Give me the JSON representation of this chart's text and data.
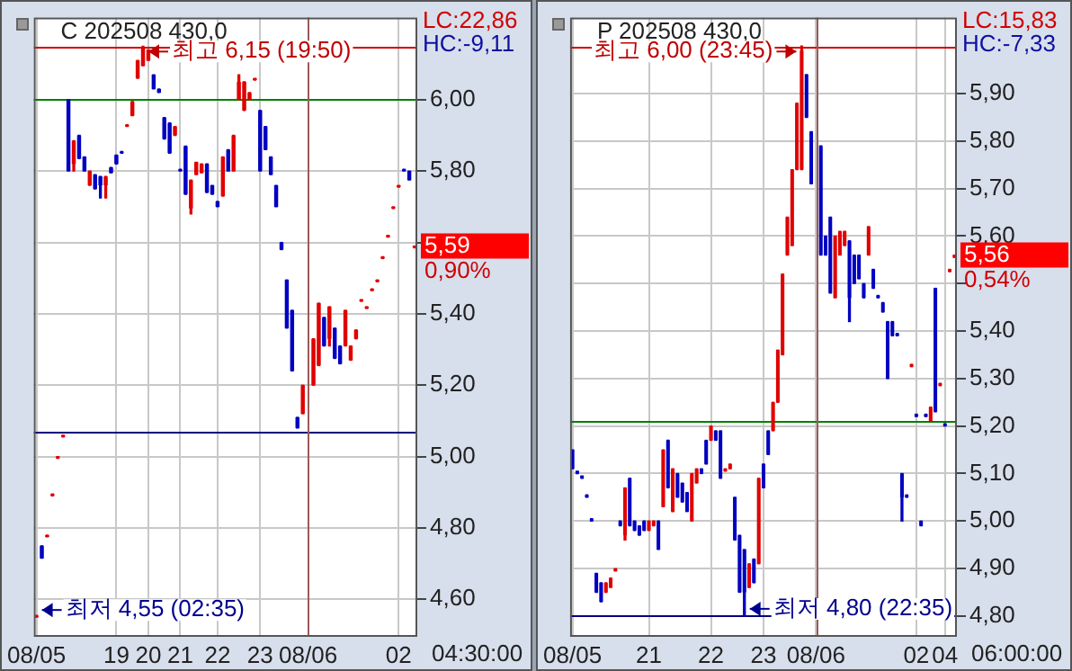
{
  "chart_data": [
    {
      "type": "candlestick",
      "title": "C 202508 430,0",
      "annotations": [
        "LC:22,86",
        "HC:-9,11",
        "최고 6,15 (19:50)",
        "최저 4,55 (02:35)",
        "5,59",
        "0,90%",
        "04:30:00"
      ],
      "categories": [
        "08/05",
        null,
        null,
        null,
        null,
        null,
        null,
        null,
        null,
        null,
        null,
        null,
        null,
        null,
        null,
        "19",
        null,
        null,
        null,
        null,
        null,
        "20",
        null,
        null,
        null,
        null,
        null,
        "21",
        null,
        null,
        null,
        null,
        null,
        null,
        "22",
        null,
        null,
        null,
        null,
        null,
        null,
        null,
        "23",
        null,
        null,
        null,
        null,
        null,
        null,
        null,
        null,
        "08/06",
        null,
        null,
        null,
        null,
        null,
        null,
        null,
        null,
        null,
        null,
        null,
        null,
        null,
        null,
        null,
        null,
        "02",
        null,
        null,
        null
      ],
      "ohlc": [
        [
          4.55,
          4.555,
          4.55,
          4.555
        ],
        [
          4.75,
          4.75,
          4.715,
          4.715
        ],
        [
          4.775,
          4.78,
          4.775,
          4.78
        ],
        [
          4.89,
          4.895,
          4.89,
          4.895
        ],
        [
          4.995,
          5.0,
          4.995,
          5.0
        ],
        [
          5.055,
          5.06,
          5.055,
          5.06
        ],
        [
          6.0,
          6.0,
          5.8,
          5.8
        ],
        [
          5.82,
          5.885,
          5.8,
          5.885
        ],
        [
          5.9,
          5.9,
          5.835,
          5.835
        ],
        [
          5.84,
          5.84,
          5.8,
          5.8
        ],
        [
          5.76,
          5.8,
          5.76,
          5.8
        ],
        [
          5.79,
          5.79,
          5.75,
          5.75
        ],
        [
          5.785,
          5.785,
          5.725,
          5.76
        ],
        [
          5.76,
          5.785,
          5.725,
          5.785
        ],
        [
          5.81,
          5.81,
          5.795,
          5.795
        ],
        [
          5.845,
          5.845,
          5.82,
          5.82
        ],
        [
          5.855,
          5.855,
          5.85,
          5.85
        ],
        [
          5.925,
          5.93,
          5.925,
          5.93
        ],
        [
          5.955,
          5.995,
          5.955,
          5.995
        ],
        [
          6.06,
          6.11,
          6.06,
          6.11
        ],
        [
          6.095,
          6.15,
          6.095,
          6.145
        ],
        [
          6.11,
          6.14,
          6.11,
          6.14
        ],
        [
          6.07,
          6.07,
          6.03,
          6.03
        ],
        [
          6.03,
          6.03,
          6.02,
          6.02
        ],
        [
          5.95,
          5.95,
          5.89,
          5.89
        ],
        [
          5.935,
          5.935,
          5.85,
          5.85
        ],
        [
          5.9,
          5.925,
          5.9,
          5.925
        ],
        [
          5.805,
          5.805,
          5.8,
          5.8
        ],
        [
          5.87,
          5.87,
          5.735,
          5.735
        ],
        [
          5.695,
          5.775,
          5.68,
          5.775
        ],
        [
          5.79,
          5.825,
          5.79,
          5.825
        ],
        [
          5.795,
          5.82,
          5.795,
          5.82
        ],
        [
          5.82,
          5.82,
          5.74,
          5.74
        ],
        [
          5.76,
          5.76,
          5.735,
          5.735
        ],
        [
          5.715,
          5.715,
          5.7,
          5.7
        ],
        [
          5.73,
          5.84,
          5.73,
          5.84
        ],
        [
          5.86,
          5.86,
          5.8,
          5.8
        ],
        [
          5.8,
          5.9,
          5.8,
          5.9
        ],
        [
          6.0,
          6.07,
          6.0,
          6.05
        ],
        [
          5.97,
          6.05,
          5.97,
          6.05
        ],
        [
          6.0,
          6.02,
          6.0,
          6.02
        ],
        [
          6.055,
          6.06,
          6.055,
          6.06
        ],
        [
          5.97,
          5.97,
          5.8,
          5.8
        ],
        [
          5.925,
          5.925,
          5.86,
          5.86
        ],
        [
          5.84,
          5.84,
          5.79,
          5.79
        ],
        [
          5.76,
          5.76,
          5.7,
          5.7
        ],
        [
          5.6,
          5.6,
          5.58,
          5.58
        ],
        [
          5.495,
          5.495,
          5.36,
          5.36
        ],
        [
          5.41,
          5.41,
          5.24,
          5.24
        ],
        [
          5.11,
          5.11,
          5.08,
          5.08
        ],
        [
          5.12,
          5.2,
          5.12,
          5.2
        ],
        null,
        [
          5.2,
          5.33,
          5.2,
          5.33
        ],
        [
          5.255,
          5.43,
          5.255,
          5.43
        ],
        [
          5.39,
          5.39,
          5.31,
          5.31
        ],
        [
          5.33,
          5.42,
          5.31,
          5.42
        ],
        [
          5.36,
          5.36,
          5.275,
          5.275
        ],
        [
          5.31,
          5.31,
          5.26,
          5.26
        ],
        [
          5.31,
          5.41,
          5.31,
          5.41
        ],
        [
          5.27,
          5.31,
          5.27,
          5.31
        ],
        [
          5.33,
          5.355,
          5.33,
          5.355
        ],
        [
          5.435,
          5.44,
          5.435,
          5.44
        ],
        [
          5.415,
          5.42,
          5.415,
          5.42
        ],
        [
          5.465,
          5.47,
          5.465,
          5.47
        ],
        [
          5.49,
          5.495,
          5.49,
          5.495
        ],
        [
          5.555,
          5.56,
          5.555,
          5.56
        ],
        [
          5.615,
          5.62,
          5.615,
          5.62
        ],
        [
          5.695,
          5.7,
          5.695,
          5.7
        ],
        [
          5.755,
          5.76,
          5.755,
          5.76
        ],
        [
          5.805,
          5.805,
          5.8,
          5.8
        ],
        [
          5.8,
          5.8,
          5.775,
          5.775
        ],
        [
          5.585,
          5.59,
          5.585,
          5.59
        ]
      ],
      "colors": [
        "#e00000",
        "#0000c0",
        "#e00000",
        "#e00000",
        "#e00000",
        "#e00000",
        "#0000c0",
        "#e00000",
        "#0000c0",
        "#0000c0",
        "#e00000",
        "#0000c0",
        "#0000c0",
        "#e00000",
        "#0000c0",
        "#0000c0",
        "#0000c0",
        "#e00000",
        "#e00000",
        "#e00000",
        "#e00000",
        "#e00000",
        "#0000c0",
        "#0000c0",
        "#0000c0",
        "#0000c0",
        "#e00000",
        "#0000c0",
        "#0000c0",
        "#e00000",
        "#e00000",
        "#e00000",
        "#0000c0",
        "#0000c0",
        "#0000c0",
        "#e00000",
        "#0000c0",
        "#e00000",
        "#e00000",
        "#e00000",
        "#e00000",
        "#e00000",
        "#0000c0",
        "#0000c0",
        "#0000c0",
        "#0000c0",
        "#0000c0",
        "#0000c0",
        "#0000c0",
        "#0000c0",
        "#e00000",
        null,
        "#e00000",
        "#e00000",
        "#0000c0",
        "#e00000",
        "#0000c0",
        "#0000c0",
        "#e00000",
        "#e00000",
        "#e00000",
        "#e00000",
        "#e00000",
        "#e00000",
        "#e00000",
        "#e00000",
        "#e00000",
        "#e00000",
        "#e00000",
        "#0000c0",
        "#0000c0",
        "#e00000"
      ],
      "ylim": [
        4.5,
        6.23
      ],
      "yticks": [
        {
          "value": 4.6,
          "label": "4,60"
        },
        {
          "value": 4.8,
          "label": "4,80"
        },
        {
          "value": 5.0,
          "label": "5,00"
        },
        {
          "value": 5.2,
          "label": "5,20"
        },
        {
          "value": 5.4,
          "label": "5,40"
        },
        {
          "value": 5.6,
          "label": null
        },
        {
          "value": 5.8,
          "label": "5,80"
        },
        {
          "value": 6.0,
          "label": "6,00"
        }
      ],
      "ref_lines": [
        {
          "axis": "y",
          "value": 6.15,
          "color": "#d00000"
        },
        {
          "axis": "y",
          "value": 6.0,
          "color": "#008000"
        },
        {
          "axis": "y",
          "value": 5.07,
          "color": "#000080"
        },
        {
          "axis": "x",
          "value": "08/06",
          "color": "#9a5a5a"
        }
      ],
      "grid": true
    },
    {
      "type": "candlestick",
      "title": "P 202508 430,0",
      "annotations": [
        "LC:15,83",
        "HC:-7,33",
        "최고 6,00 (23:45)",
        "최저 4,80 (22:35)",
        "5,56",
        "0,54%",
        "06:00:00"
      ],
      "categories": [
        "08/05",
        null,
        null,
        null,
        null,
        null,
        null,
        null,
        null,
        null,
        null,
        null,
        null,
        null,
        null,
        null,
        "21",
        null,
        null,
        null,
        null,
        null,
        null,
        null,
        null,
        null,
        null,
        null,
        null,
        "22",
        null,
        null,
        null,
        null,
        null,
        null,
        null,
        null,
        null,
        null,
        "23",
        null,
        null,
        null,
        null,
        null,
        null,
        null,
        null,
        null,
        null,
        "08/06",
        null,
        null,
        null,
        null,
        null,
        null,
        null,
        null,
        null,
        null,
        null,
        null,
        null,
        null,
        null,
        null,
        null,
        null,
        null,
        null,
        "02",
        null,
        null,
        null,
        null,
        null,
        "04",
        null,
        null
      ],
      "ohlc": [
        [
          5.15,
          5.15,
          5.11,
          5.11
        ],
        [
          5.105,
          5.105,
          5.1,
          5.1
        ],
        [
          5.095,
          5.095,
          5.09,
          5.09
        ],
        [
          5.055,
          5.055,
          5.05,
          5.05
        ],
        [
          5.005,
          5.005,
          5.0,
          5.0
        ],
        [
          4.89,
          4.89,
          4.85,
          4.85
        ],
        [
          4.87,
          4.87,
          4.83,
          4.83
        ],
        [
          4.85,
          4.87,
          4.85,
          4.87
        ],
        [
          4.86,
          4.88,
          4.86,
          4.88
        ],
        [
          4.895,
          4.9,
          4.895,
          4.9
        ],
        [
          5.0,
          5.0,
          4.99,
          4.99
        ],
        [
          4.97,
          5.07,
          4.96,
          5.07
        ],
        [
          5.09,
          5.09,
          4.99,
          4.99
        ],
        [
          5.0,
          5.0,
          4.98,
          4.98
        ],
        [
          4.99,
          4.99,
          4.97,
          4.97
        ],
        [
          5.0,
          5.0,
          4.98,
          4.98
        ],
        [
          4.98,
          5.0,
          4.98,
          5.0
        ],
        [
          4.99,
          5.0,
          4.99,
          5.0
        ],
        [
          5.0,
          5.0,
          4.94,
          4.94
        ],
        [
          5.03,
          5.15,
          5.03,
          5.15
        ],
        [
          5.17,
          5.17,
          5.07,
          5.07
        ],
        [
          5.02,
          5.11,
          5.02,
          5.11
        ],
        [
          5.1,
          5.1,
          5.05,
          5.05
        ],
        [
          5.08,
          5.08,
          5.04,
          5.04
        ],
        [
          5.06,
          5.06,
          5.02,
          5.02
        ],
        [
          5.0,
          5.1,
          5.0,
          5.1
        ],
        [
          5.08,
          5.11,
          5.08,
          5.11
        ],
        [
          5.11,
          5.11,
          5.1,
          5.1
        ],
        [
          5.17,
          5.17,
          5.12,
          5.12
        ],
        [
          5.17,
          5.2,
          5.17,
          5.2
        ],
        [
          5.19,
          5.19,
          5.17,
          5.17
        ],
        [
          5.19,
          5.19,
          5.09,
          5.09
        ],
        [
          5.105,
          5.11,
          5.105,
          5.11
        ],
        [
          5.11,
          5.12,
          5.11,
          5.12
        ],
        [
          5.05,
          5.05,
          4.96,
          4.96
        ],
        [
          4.97,
          4.97,
          4.85,
          4.85
        ],
        [
          4.94,
          4.94,
          4.8,
          4.85
        ],
        [
          4.86,
          4.91,
          4.86,
          4.91
        ],
        [
          4.92,
          4.92,
          4.87,
          4.87
        ],
        [
          4.91,
          5.09,
          4.91,
          5.09
        ],
        [
          5.12,
          5.12,
          5.07,
          5.07
        ],
        [
          5.19,
          5.19,
          5.14,
          5.14
        ],
        [
          5.19,
          5.25,
          5.19,
          5.25
        ],
        [
          5.25,
          5.36,
          5.25,
          5.36
        ],
        [
          5.35,
          5.52,
          5.35,
          5.52
        ],
        [
          5.56,
          5.64,
          5.56,
          5.64
        ],
        [
          5.58,
          5.74,
          5.58,
          5.74
        ],
        [
          5.74,
          5.88,
          5.74,
          5.88
        ],
        [
          5.74,
          6.0,
          5.74,
          5.99
        ],
        [
          5.94,
          5.94,
          5.85,
          5.85
        ],
        [
          5.82,
          5.82,
          5.71,
          5.71
        ],
        null,
        [
          5.79,
          5.79,
          5.56,
          5.56
        ],
        [
          5.6,
          5.6,
          5.56,
          5.56
        ],
        [
          5.64,
          5.64,
          5.48,
          5.48
        ],
        [
          5.47,
          5.6,
          5.47,
          5.6
        ],
        [
          5.56,
          5.61,
          5.56,
          5.61
        ],
        [
          5.58,
          5.61,
          5.58,
          5.61
        ],
        [
          5.59,
          5.59,
          5.42,
          5.47
        ],
        [
          5.56,
          5.56,
          5.5,
          5.5
        ],
        [
          5.56,
          5.56,
          5.51,
          5.51
        ],
        [
          5.5,
          5.5,
          5.47,
          5.47
        ],
        [
          5.56,
          5.62,
          5.56,
          5.62
        ],
        [
          5.53,
          5.53,
          5.49,
          5.49
        ],
        [
          5.475,
          5.475,
          5.47,
          5.47
        ],
        [
          5.46,
          5.46,
          5.44,
          5.44
        ],
        [
          5.42,
          5.42,
          5.3,
          5.3
        ],
        [
          5.42,
          5.42,
          5.39,
          5.39
        ],
        [
          5.395,
          5.395,
          5.39,
          5.39
        ],
        [
          5.1,
          5.1,
          5.0,
          5.05
        ],
        [
          5.055,
          5.055,
          5.05,
          5.05
        ],
        [
          5.325,
          5.33,
          5.325,
          5.33
        ],
        [
          5.225,
          5.225,
          5.22,
          5.22
        ],
        [
          5.0,
          5.0,
          4.99,
          4.99
        ],
        [
          5.225,
          5.225,
          5.22,
          5.22
        ],
        [
          5.21,
          5.24,
          5.21,
          5.24
        ],
        [
          5.49,
          5.49,
          5.23,
          5.23
        ],
        [
          5.285,
          5.29,
          5.285,
          5.29
        ],
        [
          5.205,
          5.205,
          5.2,
          5.2
        ],
        [
          5.525,
          5.53,
          5.525,
          5.53
        ],
        [
          5.555,
          5.56,
          5.555,
          5.56
        ]
      ],
      "colors": [
        "#0000c0",
        "#0000c0",
        "#0000c0",
        "#0000c0",
        "#0000c0",
        "#0000c0",
        "#0000c0",
        "#e00000",
        "#e00000",
        "#e00000",
        "#0000c0",
        "#e00000",
        "#0000c0",
        "#0000c0",
        "#0000c0",
        "#0000c0",
        "#e00000",
        "#e00000",
        "#0000c0",
        "#e00000",
        "#0000c0",
        "#e00000",
        "#0000c0",
        "#0000c0",
        "#0000c0",
        "#e00000",
        "#e00000",
        "#0000c0",
        "#0000c0",
        "#e00000",
        "#0000c0",
        "#0000c0",
        "#e00000",
        "#e00000",
        "#0000c0",
        "#0000c0",
        "#0000c0",
        "#e00000",
        "#0000c0",
        "#e00000",
        "#0000c0",
        "#0000c0",
        "#e00000",
        "#e00000",
        "#e00000",
        "#e00000",
        "#e00000",
        "#e00000",
        "#e00000",
        "#0000c0",
        "#0000c0",
        null,
        "#0000c0",
        "#0000c0",
        "#0000c0",
        "#e00000",
        "#e00000",
        "#e00000",
        "#0000c0",
        "#0000c0",
        "#0000c0",
        "#0000c0",
        "#e00000",
        "#0000c0",
        "#0000c0",
        "#0000c0",
        "#0000c0",
        "#0000c0",
        "#0000c0",
        "#0000c0",
        "#0000c0",
        "#e00000",
        "#0000c0",
        "#0000c0",
        "#0000c0",
        "#e00000",
        "#0000c0",
        "#e00000",
        "#0000c0",
        "#e00000",
        "#e00000"
      ],
      "ylim": [
        4.76,
        6.06
      ],
      "yticks": [
        {
          "value": 4.8,
          "label": "4,80"
        },
        {
          "value": 4.9,
          "label": "4,90"
        },
        {
          "value": 5.0,
          "label": "5,00"
        },
        {
          "value": 5.1,
          "label": "5,10"
        },
        {
          "value": 5.2,
          "label": "5,20"
        },
        {
          "value": 5.3,
          "label": "5,30"
        },
        {
          "value": 5.4,
          "label": "5,40"
        },
        {
          "value": 5.5,
          "label": null
        },
        {
          "value": 5.6,
          "label": "5,60"
        },
        {
          "value": 5.7,
          "label": "5,70"
        },
        {
          "value": 5.8,
          "label": "5,80"
        },
        {
          "value": 5.9,
          "label": "5,90"
        }
      ],
      "ref_lines": [
        {
          "axis": "y",
          "value": 6.0,
          "color": "#d00000"
        },
        {
          "axis": "y",
          "value": 5.21,
          "color": "#008000"
        },
        {
          "axis": "y",
          "value": 4.8,
          "color": "#000080"
        },
        {
          "axis": "x",
          "value": "08/06",
          "color": "#9a5a5a"
        }
      ],
      "grid": true
    }
  ]
}
